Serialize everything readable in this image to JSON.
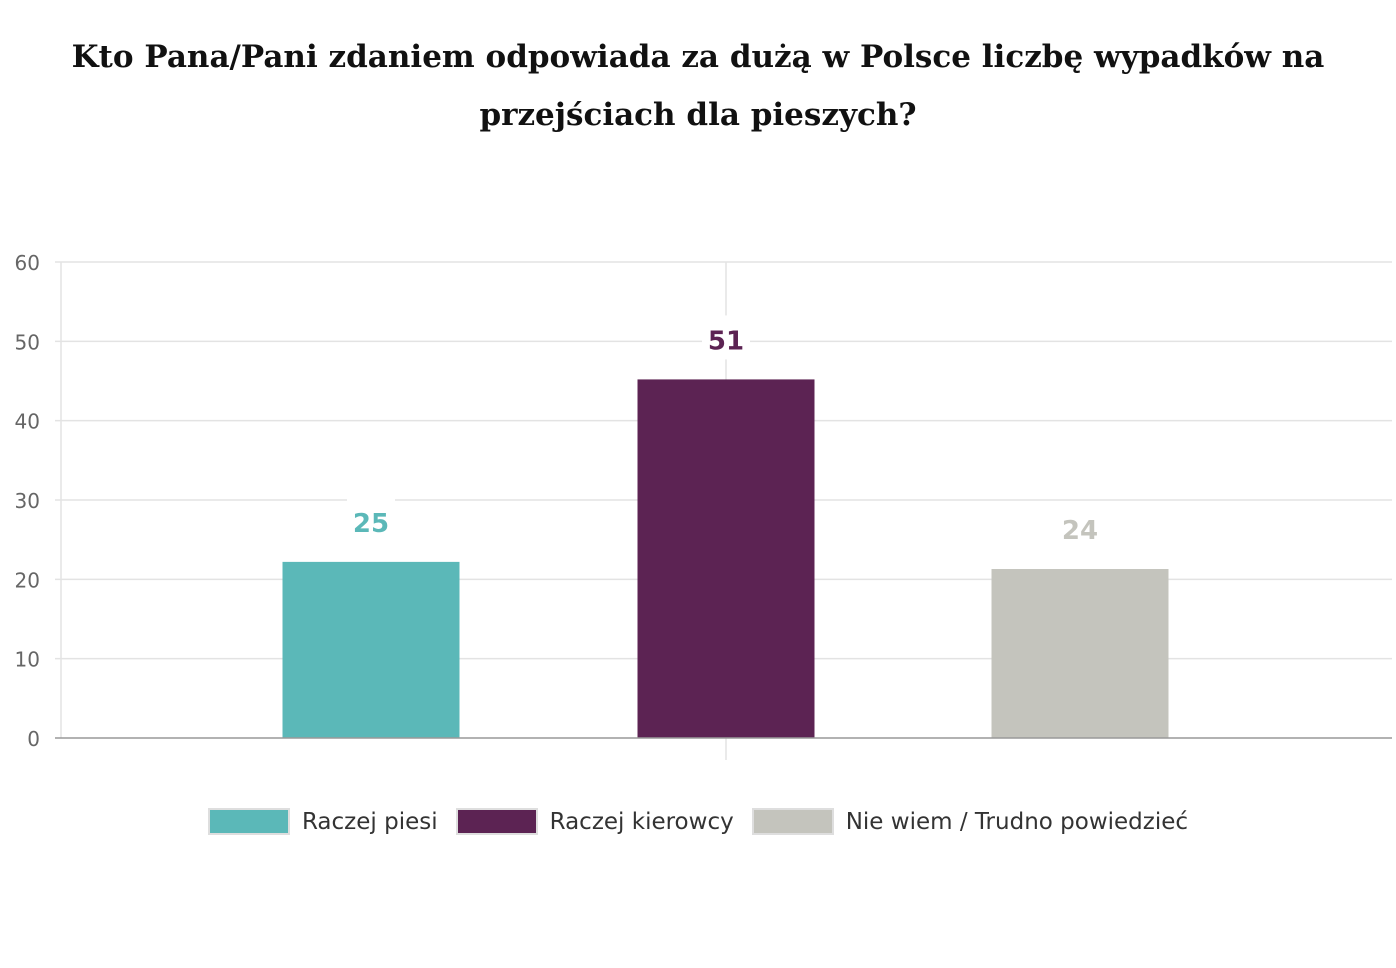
{
  "chart_data": {
    "type": "bar",
    "title": "Kto Pana/Pani zdaniem odpowiada za dużą w Polsce liczbę wypadków na przejściach dla pieszych?",
    "categories": [
      "Raczej piesi",
      "Raczej kierowcy",
      "Nie wiem / Trudno powiedzieć"
    ],
    "values": [
      25,
      51,
      24
    ],
    "bar_heights": [
      22.2,
      45.2,
      21.3
    ],
    "data_labels": [
      "25",
      "51",
      "24"
    ],
    "colors": [
      "#5bb8b8",
      "#5c2353",
      "#c4c4bd"
    ],
    "ylim": [
      0,
      60
    ],
    "yticks": [
      0,
      10,
      20,
      30,
      40,
      50,
      60
    ],
    "grid": true,
    "legend_position": "bottom"
  }
}
